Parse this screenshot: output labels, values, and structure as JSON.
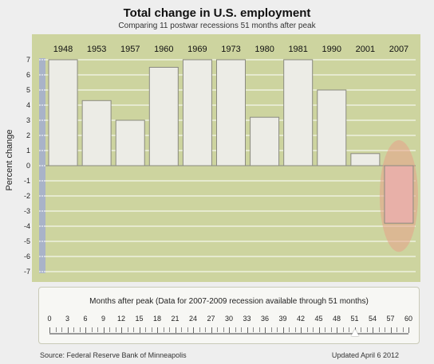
{
  "chart_data": {
    "type": "bar",
    "title": "Total change in U.S. employment",
    "subtitle": "Comparing 11 postwar recessions 51 months after peak",
    "ylabel": "Percent change",
    "xlabel": "",
    "categories": [
      "1948",
      "1953",
      "1957",
      "1960",
      "1969",
      "1973",
      "1980",
      "1981",
      "1990",
      "2001",
      "2007"
    ],
    "values": [
      7.0,
      4.3,
      3.0,
      6.5,
      7.0,
      7.0,
      3.2,
      7.0,
      5.0,
      0.8,
      -3.8
    ],
    "ylim": [
      -7,
      7
    ],
    "yticks": [
      7,
      6,
      5,
      4,
      3,
      2,
      1,
      0,
      -1,
      -2,
      -3,
      -4,
      -5,
      -6,
      -7
    ],
    "grid": true,
    "highlight_category": "2007",
    "colors": {
      "plot_background": "#cdd49f",
      "bar_fill": "#ececE6",
      "bar_stroke": "#8a8a80",
      "highlight_fill": "#e8b0a8",
      "highlight_ellipse": "#e8a088",
      "y_axis_strip": "#a9b3c8",
      "gridline": "#ffffff"
    }
  },
  "slider": {
    "caption": "Months after peak (Data for 2007-2009 recession available through 51 months)",
    "tick_labels": [
      "0",
      "3",
      "6",
      "9",
      "12",
      "15",
      "18",
      "21",
      "24",
      "27",
      "30",
      "33",
      "36",
      "39",
      "42",
      "45",
      "48",
      "51",
      "54",
      "57",
      "60"
    ],
    "min": 0,
    "max": 60,
    "value": 51
  },
  "footer": {
    "source": "Source: Federal Reserve Bank of Minneapolis",
    "updated": "Updated April 6 2012"
  }
}
